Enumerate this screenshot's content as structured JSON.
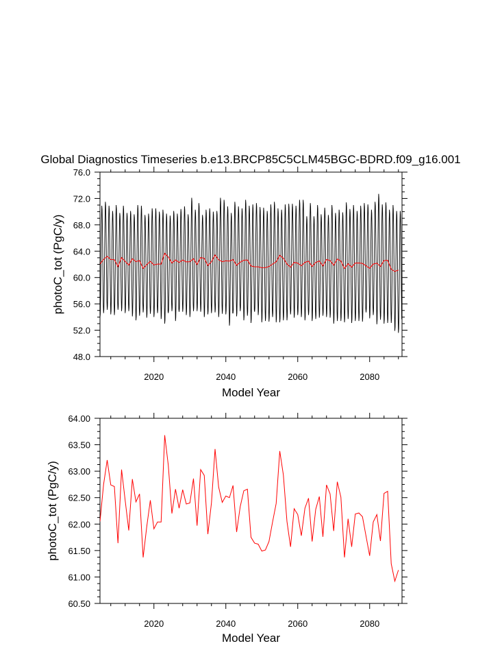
{
  "title": "Global Diagnostics Timeseries b.e13.BRCP85C5CLM45BGC-BDRD.f09_g16.001",
  "chart_data": [
    {
      "type": "line",
      "xlabel": "Model Year",
      "ylabel": "photoC_tot (PgC/y)",
      "xlim": [
        2005,
        2089
      ],
      "ylim": [
        48.0,
        76.0
      ],
      "x_ticks": [
        2020,
        2040,
        2060,
        2080
      ],
      "x_tick_labels": [
        "2020",
        "2040",
        "2060",
        "2080"
      ],
      "y_ticks": [
        48,
        52,
        56,
        60,
        64,
        68,
        72,
        76
      ],
      "y_tick_labels": [
        "48.0",
        "52.0",
        "56.0",
        "60.0",
        "64.0",
        "68.0",
        "72.0",
        "76.0"
      ],
      "series": [
        {
          "color": "#000000",
          "x_start": 2005,
          "x_step_years": 0.08333,
          "values_desc": "monthly values oscillating seasonally between ~53.5 and ~71.5 PgC/y",
          "seasonal_min": [
            53.9,
            54.6,
            55.1,
            54.4,
            54.3,
            55.1,
            54.9,
            54.6,
            54.9,
            54.1,
            53.5,
            54.2,
            54.7,
            53.9,
            54.5,
            54.0,
            54.6,
            53.7,
            53.0,
            54.6,
            54.9,
            53.4,
            54.8,
            54.8,
            54.3,
            54.0,
            54.9,
            54.9,
            54.8,
            54.0,
            54.4,
            54.6,
            54.7,
            54.0,
            54.5,
            54.4,
            52.7,
            54.6,
            54.1,
            54.9,
            53.5,
            54.2,
            53.1,
            54.8,
            54.3,
            53.2,
            53.4,
            53.3,
            54.0,
            53.2,
            53.2,
            53.5,
            53.5,
            54.4,
            53.9,
            54.3,
            54.0,
            53.5,
            54.3,
            53.4,
            53.7,
            53.9,
            54.2,
            54.0,
            53.9,
            53.0,
            53.4,
            53.4,
            53.2,
            53.7,
            53.1,
            53.4,
            53.4,
            53.3,
            54.7,
            53.8,
            54.3,
            52.9,
            53.6,
            53.0,
            53.1,
            53.1,
            51.9,
            51.6
          ],
          "seasonal_max": [
            70.9,
            71.5,
            70.9,
            70.1,
            71.0,
            69.8,
            70.9,
            69.8,
            70.1,
            69.6,
            71.0,
            70.9,
            69.5,
            69.7,
            70.5,
            70.5,
            70.0,
            70.3,
            69.7,
            69.4,
            70.1,
            69.7,
            70.4,
            70.8,
            69.6,
            72.1,
            70.3,
            71.3,
            69.5,
            70.3,
            70.5,
            70.0,
            70.1,
            72.1,
            71.8,
            70.8,
            69.8,
            71.5,
            70.8,
            70.5,
            71.8,
            70.9,
            71.1,
            71.3,
            70.7,
            70.6,
            70.1,
            71.1,
            71.5,
            70.5,
            70.3,
            71.1,
            71.2,
            71.2,
            70.9,
            71.8,
            71.8,
            69.3,
            71.3,
            69.3,
            71.0,
            69.6,
            70.6,
            69.5,
            71.0,
            69.8,
            70.3,
            69.9,
            71.4,
            70.4,
            71.0,
            70.1,
            70.9,
            71.3,
            71.1,
            70.3,
            71.5,
            72.7,
            71.1,
            71.4,
            70.3,
            71.0,
            70.1,
            70.1
          ]
        },
        {
          "color": "#ff0000",
          "name": "",
          "values_ref": "annual_means"
        }
      ]
    },
    {
      "type": "line",
      "xlabel": "Model Year",
      "ylabel": "photoC_tot (PgC/y)",
      "xlim": [
        2005,
        2089
      ],
      "ylim": [
        60.5,
        64.0
      ],
      "x_ticks": [
        2020,
        2040,
        2060,
        2080
      ],
      "x_tick_labels": [
        "2020",
        "2040",
        "2060",
        "2080"
      ],
      "y_ticks": [
        60.5,
        61.0,
        61.5,
        62.0,
        62.5,
        63.0,
        63.5,
        64.0
      ],
      "y_tick_labels": [
        "60.50",
        "61.00",
        "61.50",
        "62.00",
        "62.50",
        "63.00",
        "63.50",
        "64.00"
      ],
      "series": [
        {
          "color": "#ff0000",
          "x": [
            2005,
            2006,
            2007,
            2008,
            2009,
            2010,
            2011,
            2012,
            2013,
            2014,
            2015,
            2016,
            2017,
            2018,
            2019,
            2020,
            2021,
            2022,
            2023,
            2024,
            2025,
            2026,
            2027,
            2028,
            2029,
            2030,
            2031,
            2032,
            2033,
            2034,
            2035,
            2036,
            2037,
            2038,
            2039,
            2040,
            2041,
            2042,
            2043,
            2044,
            2045,
            2046,
            2047,
            2048,
            2049,
            2050,
            2051,
            2052,
            2053,
            2054,
            2055,
            2056,
            2057,
            2058,
            2059,
            2060,
            2061,
            2062,
            2063,
            2064,
            2065,
            2066,
            2067,
            2068,
            2069,
            2070,
            2071,
            2072,
            2073,
            2074,
            2075,
            2076,
            2077,
            2078,
            2079,
            2080,
            2081,
            2082,
            2083,
            2084,
            2085,
            2086,
            2087,
            2088
          ],
          "values": [
            62.05,
            62.75,
            63.21,
            62.74,
            62.71,
            61.64,
            63.03,
            62.45,
            61.88,
            62.85,
            62.42,
            62.57,
            61.37,
            61.95,
            62.45,
            61.91,
            62.04,
            62.04,
            63.68,
            63.11,
            62.2,
            62.66,
            62.3,
            62.65,
            62.38,
            62.4,
            62.86,
            61.97,
            63.03,
            62.92,
            61.81,
            62.4,
            63.42,
            62.7,
            62.41,
            62.53,
            62.5,
            62.73,
            61.85,
            62.33,
            62.63,
            62.66,
            61.75,
            61.64,
            61.62,
            61.49,
            61.51,
            61.67,
            62.04,
            62.39,
            63.38,
            62.93,
            62.05,
            61.57,
            62.29,
            62.18,
            61.78,
            62.3,
            62.49,
            61.67,
            62.28,
            62.52,
            61.76,
            62.74,
            62.57,
            61.87,
            62.8,
            62.51,
            61.37,
            62.1,
            61.57,
            62.19,
            62.21,
            62.14,
            61.77,
            61.4,
            62.04,
            62.18,
            61.68,
            62.58,
            62.62,
            61.25,
            60.92,
            61.13
          ]
        }
      ]
    }
  ]
}
